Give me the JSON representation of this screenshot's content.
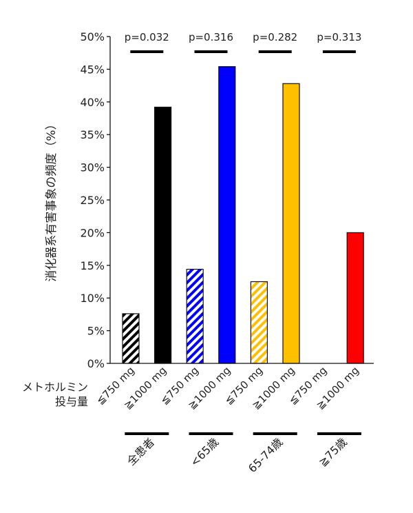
{
  "chart_data": {
    "type": "bar",
    "ylabel": "消化器系有害事象の頻度（%）",
    "ylim": [
      0,
      50
    ],
    "yticks": [
      "0%",
      "5%",
      "10%",
      "15%",
      "20%",
      "25%",
      "30%",
      "35%",
      "40%",
      "45%",
      "50%"
    ],
    "dose_label_lines": [
      "メトホルミン",
      "投与量"
    ],
    "categories": [
      "≦750 mg",
      "≧1000 mg",
      "≦750 mg",
      "≧1000 mg",
      "≦750 mg",
      "≧1000 mg",
      "≦750 mg",
      "≧1000 mg"
    ],
    "values": [
      7.6,
      39.2,
      14.4,
      45.4,
      12.5,
      42.8,
      0,
      20.0
    ],
    "colors": [
      "#000000",
      "#000000",
      "#0000ff",
      "#0000ff",
      "#ffc000",
      "#ffc000",
      "#ffffff",
      "#ff0000"
    ],
    "hatched": [
      true,
      false,
      true,
      false,
      true,
      false,
      false,
      false
    ],
    "groups": [
      {
        "name": "全患者",
        "p_value": "p=0.032"
      },
      {
        "name": "<65歳",
        "p_value": "p=0.316"
      },
      {
        "name": "65-74歳",
        "p_value": "p=0.282"
      },
      {
        "name": "≧75歳",
        "p_value": "p=0.313"
      }
    ],
    "grid": false,
    "legend": "none"
  }
}
